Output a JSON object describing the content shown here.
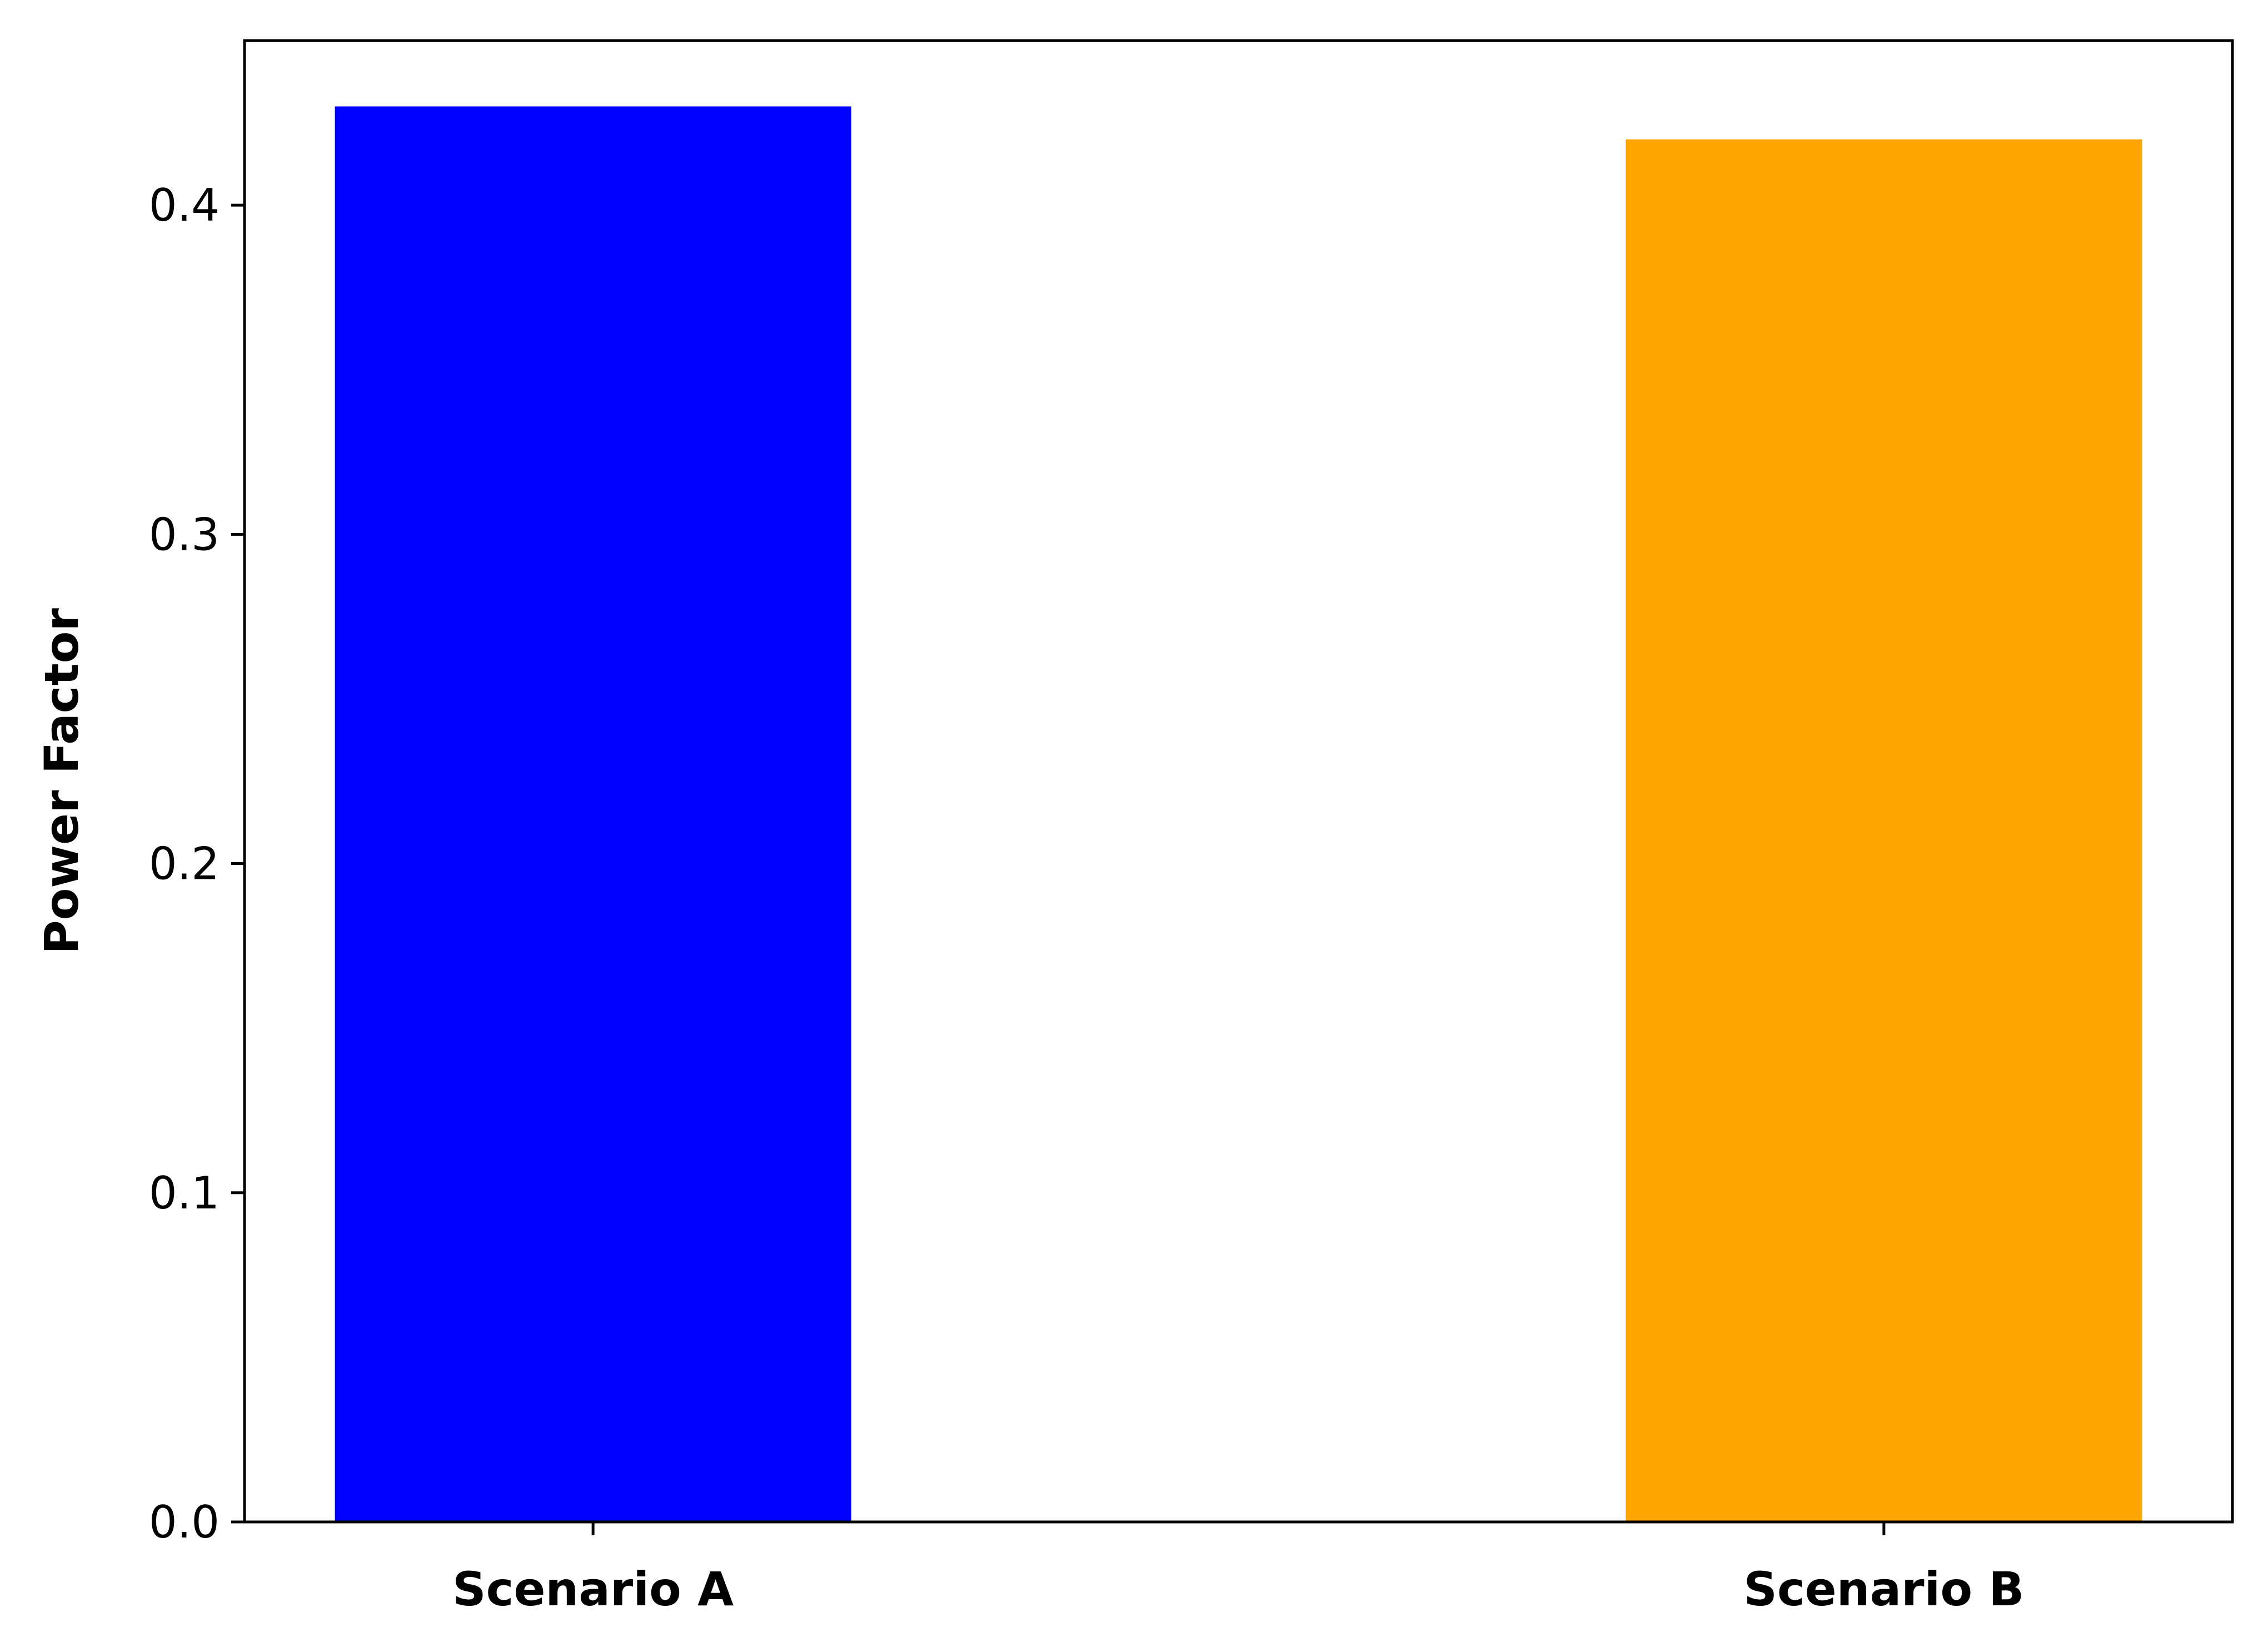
{
  "chart_data": {
    "type": "bar",
    "title": "",
    "xlabel": "",
    "ylabel": "Power Factor",
    "categories": [
      "Scenario A",
      "Scenario B"
    ],
    "values": [
      0.43,
      0.42
    ],
    "bar_colors": [
      "#0000ff",
      "#ffa500"
    ],
    "ylim": [
      0,
      0.45
    ],
    "yticks": [
      0.0,
      0.1,
      0.2,
      0.3,
      0.4
    ],
    "ytick_labels": [
      "0.0",
      "0.1",
      "0.2",
      "0.3",
      "0.4"
    ],
    "grid": false,
    "legend": "none"
  }
}
